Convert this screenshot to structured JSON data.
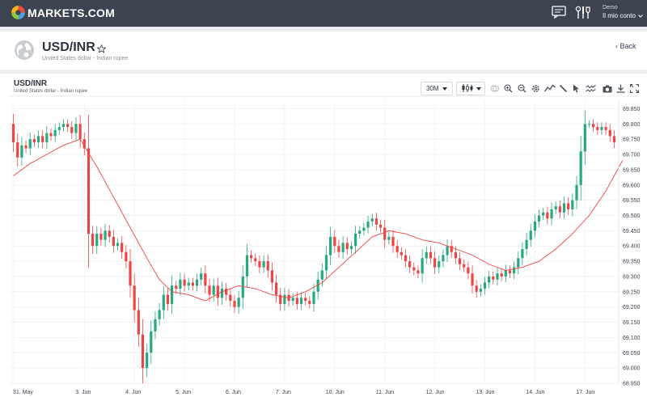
{
  "brand": {
    "name": "MARKETS.COM"
  },
  "user": {
    "account_type": "Demo",
    "account_link": "Il mio conto"
  },
  "instrument": {
    "symbol": "USD/INR",
    "description": "United States dollar - Indian rupee"
  },
  "nav": {
    "back_label": "Back"
  },
  "toolbar": {
    "timeframe": "30M"
  },
  "colors": {
    "up": "#26a881",
    "down": "#ef4444",
    "ma": "#ef4444",
    "topbar": "#3c4451"
  },
  "chart_data": {
    "type": "candlestick",
    "title": "USD/INR",
    "subtitle": "United States dollar - Indian rupee",
    "timeframe": "30M",
    "y_ticks": [
      "69.850",
      "69.800",
      "69.750",
      "69.700",
      "69.650",
      "69.600",
      "69.550",
      "69.500",
      "69.450",
      "69.400",
      "69.350",
      "69.300",
      "69.250",
      "69.200",
      "69.150",
      "69.100",
      "69.050",
      "69.000",
      "68.950"
    ],
    "x_ticks": [
      "31. May",
      "3. Jun",
      "4. Jun",
      "5. Jun",
      "6. Jun",
      "7. Jun",
      "10. Jun",
      "11. Jun",
      "12. Jun",
      "13. Jun",
      "14. Jun",
      "17. Jun"
    ],
    "ylim": [
      68.95,
      69.875
    ],
    "close": [
      69.74,
      69.69,
      69.73,
      69.72,
      69.75,
      69.74,
      69.76,
      69.74,
      69.77,
      69.76,
      69.78,
      69.79,
      69.8,
      69.79,
      69.77,
      69.8,
      69.75,
      69.72,
      69.44,
      69.4,
      69.44,
      69.42,
      69.45,
      69.43,
      69.4,
      69.41,
      69.38,
      69.35,
      69.27,
      69.19,
      69.11,
      69.0,
      69.05,
      69.12,
      69.16,
      69.19,
      69.24,
      69.21,
      69.27,
      69.26,
      69.29,
      69.27,
      69.28,
      69.27,
      69.29,
      69.31,
      69.27,
      69.24,
      69.27,
      69.23,
      69.26,
      69.24,
      69.22,
      69.2,
      69.23,
      69.3,
      69.37,
      69.36,
      69.35,
      69.33,
      69.35,
      69.32,
      69.28,
      69.24,
      69.21,
      69.24,
      69.22,
      69.23,
      69.21,
      69.23,
      69.22,
      69.21,
      69.25,
      69.29,
      69.32,
      69.37,
      69.43,
      69.4,
      69.38,
      69.41,
      69.39,
      69.4,
      69.44,
      69.45,
      69.46,
      69.48,
      69.49,
      69.47,
      69.46,
      69.42,
      69.43,
      69.4,
      69.38,
      69.37,
      69.35,
      69.33,
      69.32,
      69.31,
      69.36,
      69.38,
      69.36,
      69.33,
      69.35,
      69.37,
      69.4,
      69.38,
      69.36,
      69.34,
      69.33,
      69.31,
      69.27,
      69.25,
      69.26,
      69.28,
      69.3,
      69.29,
      69.31,
      69.3,
      69.32,
      69.31,
      69.33,
      69.36,
      69.39,
      69.42,
      69.45,
      69.48,
      69.5,
      69.51,
      69.49,
      69.52,
      69.53,
      69.51,
      69.54,
      69.52,
      69.55,
      69.6,
      69.71,
      69.8,
      69.8,
      69.79,
      69.78,
      69.79,
      69.78,
      69.76,
      69.74
    ],
    "moving_average": {
      "points": [
        [
          0,
          69.63
        ],
        [
          4,
          69.67
        ],
        [
          8,
          69.7
        ],
        [
          12,
          69.73
        ],
        [
          16,
          69.75
        ],
        [
          20,
          69.66
        ],
        [
          24,
          69.56
        ],
        [
          28,
          69.46
        ],
        [
          32,
          69.36
        ],
        [
          35,
          69.29
        ],
        [
          38,
          69.25
        ],
        [
          42,
          69.24
        ],
        [
          46,
          69.22
        ],
        [
          50,
          69.25
        ],
        [
          54,
          69.27
        ],
        [
          58,
          69.26
        ],
        [
          62,
          69.24
        ],
        [
          66,
          69.23
        ],
        [
          70,
          69.25
        ],
        [
          74,
          69.28
        ],
        [
          78,
          69.33
        ],
        [
          82,
          69.38
        ],
        [
          86,
          69.43
        ],
        [
          90,
          69.45
        ],
        [
          94,
          69.44
        ],
        [
          98,
          69.42
        ],
        [
          102,
          69.41
        ],
        [
          106,
          69.39
        ],
        [
          110,
          69.37
        ],
        [
          114,
          69.34
        ],
        [
          118,
          69.32
        ],
        [
          122,
          69.33
        ],
        [
          126,
          69.35
        ],
        [
          130,
          69.39
        ],
        [
          134,
          69.44
        ],
        [
          138,
          69.5
        ],
        [
          142,
          69.58
        ],
        [
          146,
          69.68
        ]
      ]
    }
  }
}
